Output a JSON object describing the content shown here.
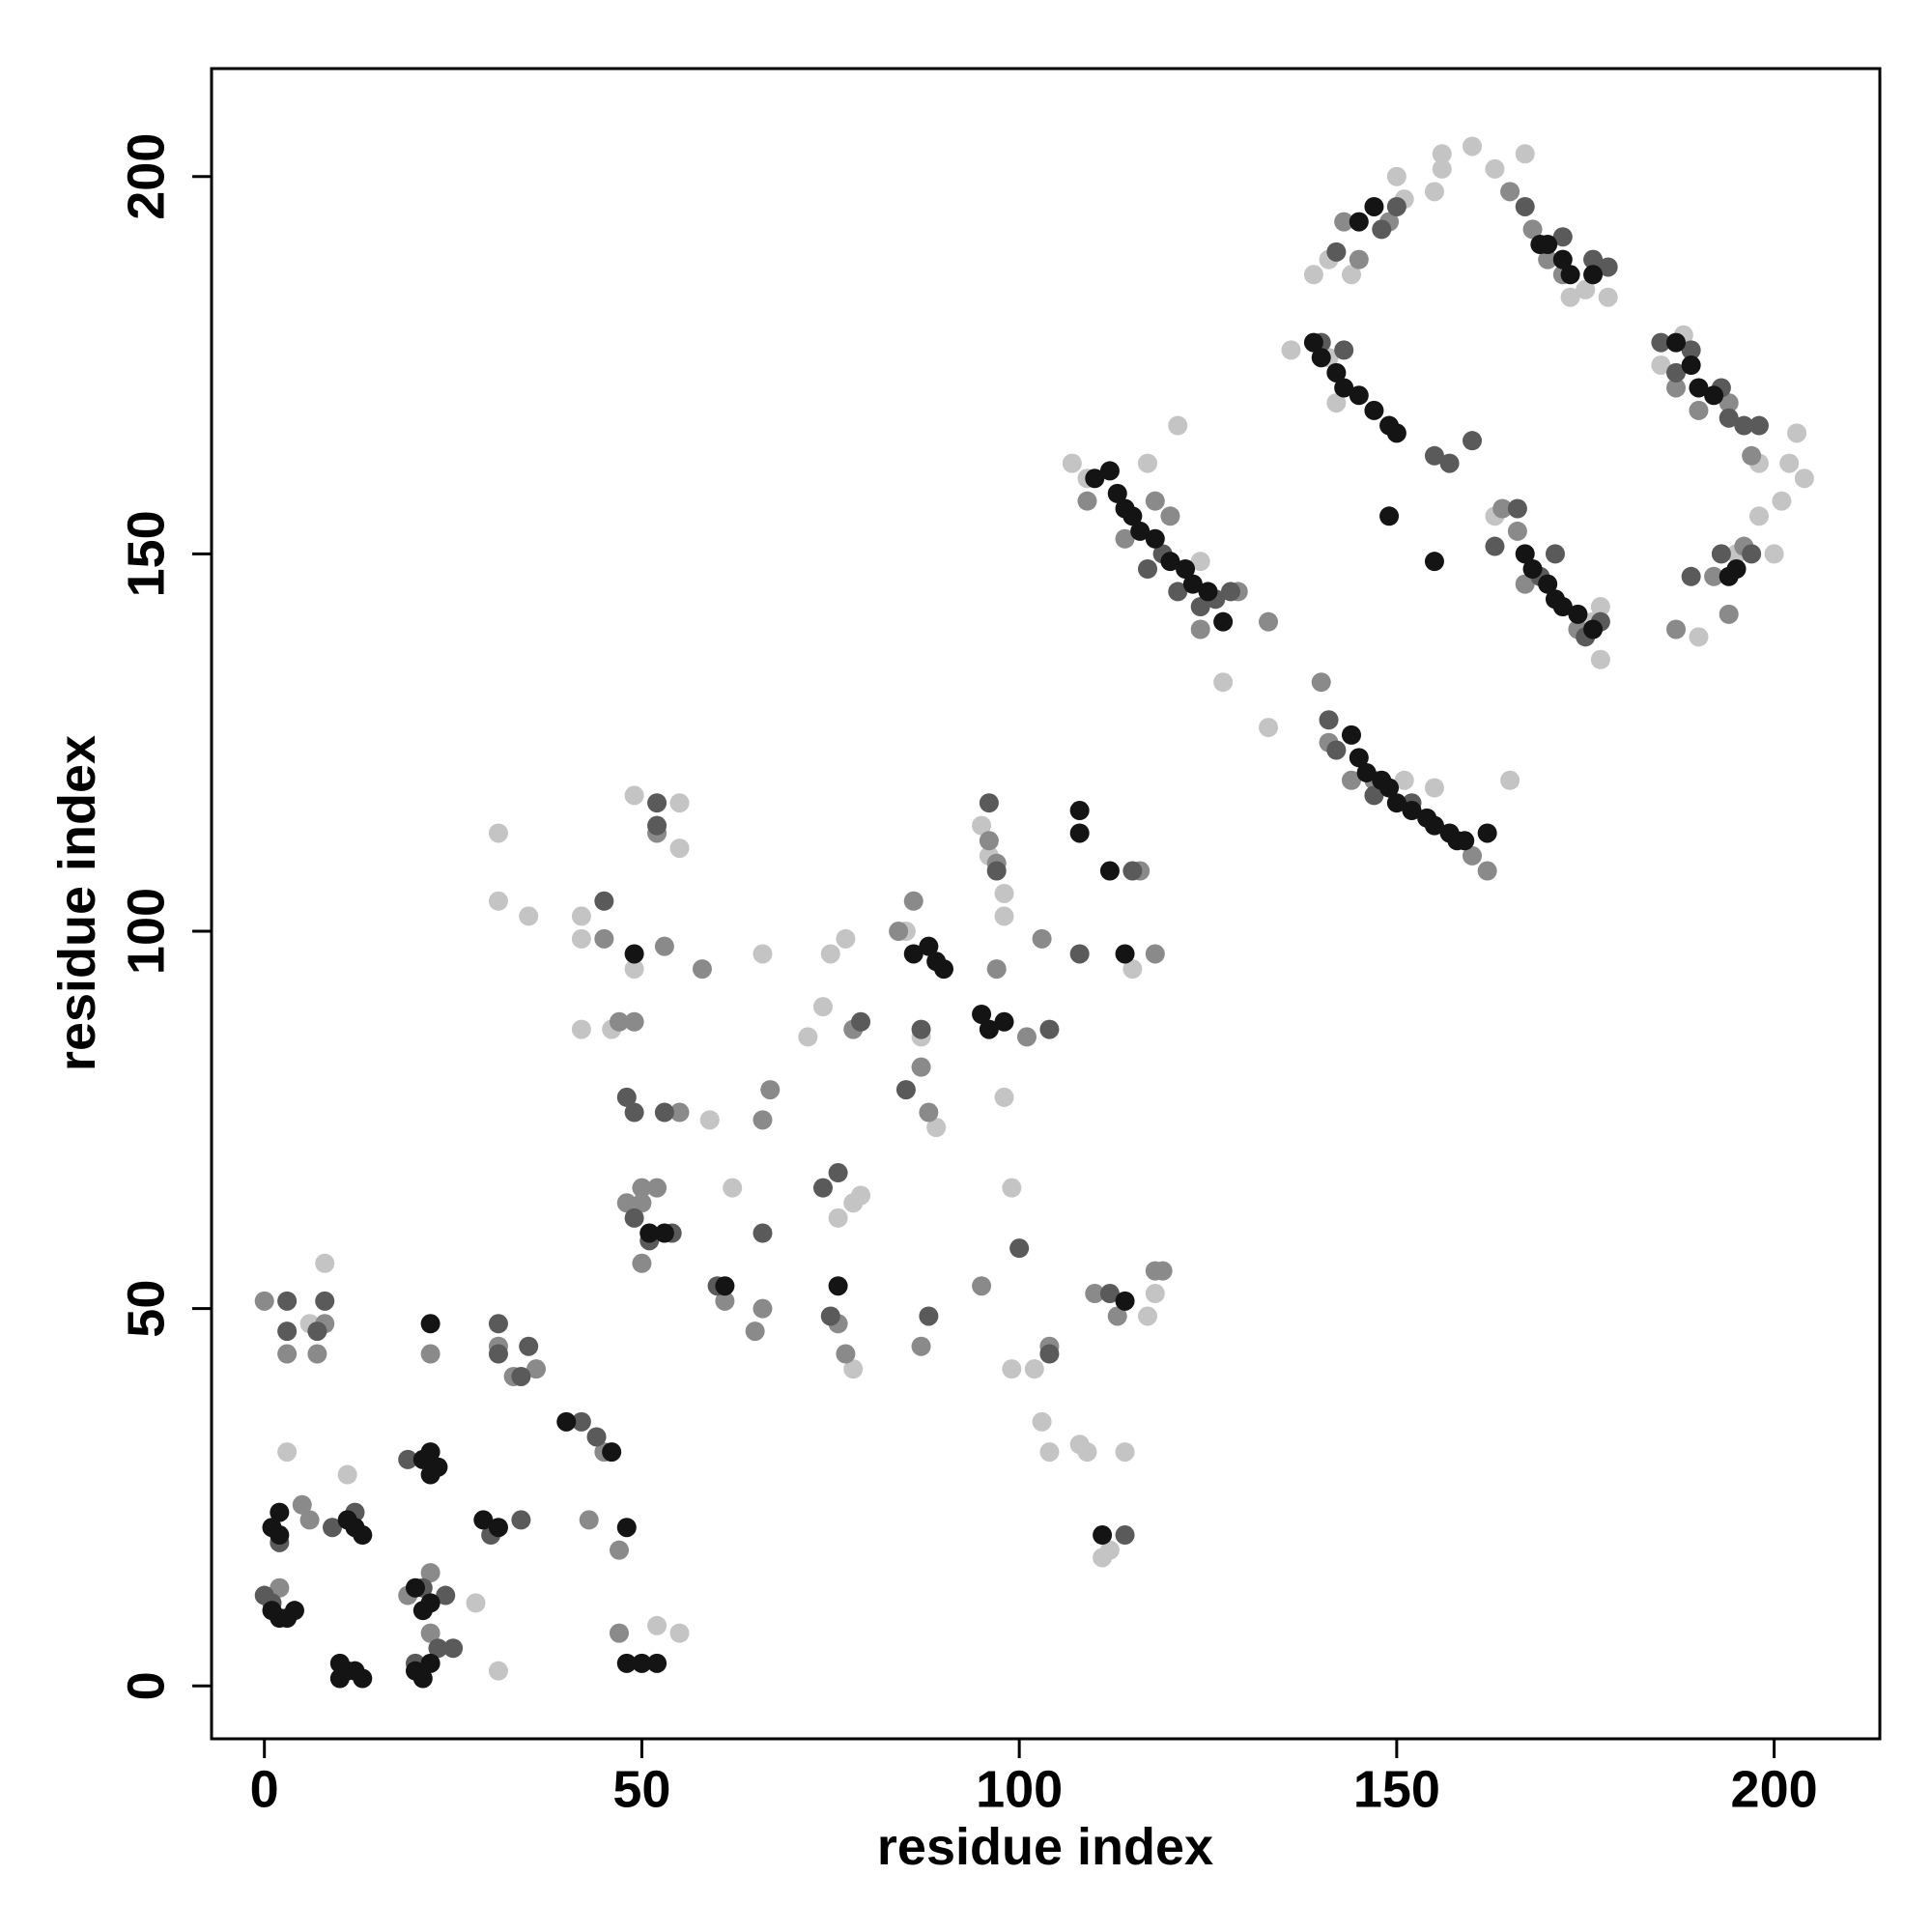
{
  "chart_data": {
    "type": "scatter",
    "x_label": "residue index",
    "y_label": "residue index",
    "xlim": [
      -7,
      214
    ],
    "ylim": [
      -7,
      214.3
    ],
    "xticks": [
      0,
      50,
      100,
      150,
      200
    ],
    "yticks": [
      0,
      50,
      100,
      150,
      200
    ],
    "series": [
      {
        "color": "#c4c4c4",
        "x": [
          3,
          8,
          6,
          11,
          28,
          31,
          31,
          31,
          35,
          42,
          42,
          42,
          46,
          49,
          49,
          55,
          55,
          55,
          52,
          59,
          62,
          66,
          72,
          74,
          77,
          75,
          76,
          78,
          78,
          79,
          85,
          87,
          89,
          95,
          96,
          98,
          98,
          98,
          99,
          99,
          102,
          103,
          104,
          108,
          109,
          114,
          111,
          112,
          115,
          117,
          118,
          107,
          109,
          117,
          121,
          124,
          127,
          133,
          136,
          139,
          141,
          144,
          150,
          151,
          155,
          156,
          156,
          160,
          163,
          167,
          173,
          175,
          178,
          177,
          177,
          176,
          165,
          163,
          185,
          188,
          190,
          195,
          198,
          198,
          200,
          201,
          202,
          203,
          204,
          141,
          142,
          155,
          151
        ],
        "y": [
          31,
          56,
          48,
          28,
          11,
          2,
          113,
          104,
          102,
          102,
          99,
          87,
          87,
          118,
          95,
          117,
          111,
          7,
          8,
          75,
          66,
          97,
          86,
          90,
          99,
          97,
          62,
          64,
          42,
          65,
          100,
          86,
          74,
          114,
          110,
          105,
          102,
          78,
          66,
          42,
          42,
          35,
          31,
          32,
          31,
          31,
          17,
          18,
          95,
          49,
          52,
          162,
          160,
          162,
          167,
          149,
          133,
          127,
          177,
          187,
          189,
          187,
          200,
          197,
          198,
          203,
          201,
          204,
          201,
          203,
          184,
          185,
          184,
          136,
          143,
          141,
          120,
          155,
          175,
          179,
          139,
          150,
          155,
          162,
          150,
          157,
          162,
          166,
          160,
          176,
          170,
          119,
          120
        ]
      },
      {
        "color": "#8a8a8a",
        "x": [
          2,
          0,
          3,
          5,
          6,
          7,
          8,
          19,
          22,
          22,
          22,
          31,
          33,
          36,
          43,
          45,
          47,
          45,
          47,
          47,
          48,
          49,
          50,
          50,
          50,
          52,
          53,
          58,
          52,
          55,
          61,
          65,
          66,
          66,
          67,
          76,
          77,
          78,
          84,
          86,
          87,
          88,
          87,
          95,
          97,
          96,
          97,
          101,
          103,
          104,
          110,
          113,
          116,
          118,
          118,
          119,
          109,
          114,
          118,
          120,
          124,
          129,
          133,
          140,
          141,
          144,
          147,
          160,
          162,
          164,
          166,
          167,
          172,
          174,
          145,
          143,
          149,
          165,
          168,
          170,
          172,
          187,
          190,
          194,
          196,
          197,
          192,
          187,
          194
        ],
        "y": [
          13,
          51,
          44,
          24,
          22,
          44,
          48,
          12,
          15,
          7,
          44,
          45,
          41,
          42,
          22,
          99,
          88,
          31,
          18,
          7,
          64,
          88,
          66,
          64,
          56,
          113,
          98,
          95,
          66,
          76,
          51,
          47,
          50,
          75,
          79,
          48,
          44,
          87,
          100,
          104,
          82,
          76,
          45,
          53,
          95,
          112,
          109,
          86,
          99,
          45,
          52,
          49,
          108,
          97,
          55,
          55,
          157,
          152,
          157,
          155,
          140,
          145,
          141,
          133,
          125,
          120,
          120,
          110,
          108,
          156,
          153,
          146,
          143,
          140,
          189,
          194,
          194,
          198,
          193,
          189,
          187,
          172,
          169,
          170,
          151,
          163,
          147,
          140,
          142
        ]
      },
      {
        "color": "#5a5a5a",
        "x": [
          0,
          1,
          2,
          3,
          3,
          7,
          8,
          9,
          12,
          19,
          20,
          21,
          23,
          25,
          24,
          31,
          31,
          30,
          34,
          35,
          34,
          42,
          44,
          45,
          48,
          49,
          51,
          54,
          49,
          53,
          52,
          52,
          60,
          66,
          74,
          76,
          75,
          79,
          85,
          87,
          88,
          96,
          97,
          100,
          104,
          104,
          112,
          114,
          115,
          108,
          117,
          119,
          121,
          124,
          126,
          128,
          141,
          142,
          147,
          152,
          155,
          157,
          160,
          163,
          166,
          169,
          171,
          175,
          177,
          140,
          143,
          142,
          148,
          150,
          167,
          172,
          176,
          178,
          185,
          187,
          189,
          193,
          194,
          196,
          198,
          193,
          189,
          197
        ],
        "y": [
          12,
          11,
          19,
          47,
          51,
          47,
          51,
          21,
          23,
          30,
          3,
          13,
          5,
          5,
          12,
          48,
          44,
          20,
          22,
          45,
          41,
          35,
          33,
          104,
          78,
          76,
          59,
          60,
          62,
          76,
          114,
          117,
          53,
          60,
          66,
          68,
          49,
          88,
          79,
          87,
          49,
          117,
          108,
          58,
          44,
          87,
          52,
          20,
          108,
          97,
          148,
          150,
          145,
          143,
          144,
          145,
          128,
          124,
          118,
          117,
          163,
          162,
          165,
          151,
          156,
          147,
          150,
          139,
          141,
          178,
          177,
          190,
          193,
          196,
          196,
          192,
          189,
          188,
          178,
          174,
          177,
          172,
          168,
          167,
          167,
          150,
          147,
          150
        ]
      },
      {
        "color": "#141414",
        "x": [
          1,
          2,
          3,
          4,
          1,
          2,
          2,
          10,
          11,
          10,
          12,
          13,
          11,
          12,
          13,
          21,
          20,
          22,
          21,
          22,
          20,
          21,
          22,
          22,
          23,
          29,
          31,
          22,
          48,
          48,
          50,
          52,
          40,
          46,
          51,
          53,
          49,
          61,
          76,
          86,
          88,
          89,
          90,
          95,
          96,
          98,
          108,
          108,
          112,
          111,
          114,
          114,
          110,
          112,
          113,
          114,
          115,
          116,
          118,
          120,
          122,
          123,
          125,
          127,
          139,
          140,
          142,
          143,
          145,
          147,
          149,
          150,
          149,
          155,
          144,
          145,
          146,
          148,
          149,
          150,
          152,
          154,
          155,
          157,
          158,
          159,
          162,
          167,
          168,
          170,
          171,
          172,
          174,
          176,
          145,
          147,
          169,
          170,
          172,
          173,
          176,
          187,
          189,
          190,
          192,
          194,
          195
        ],
        "y": [
          10,
          9,
          9,
          10,
          21,
          23,
          20,
          3,
          2,
          1,
          2,
          1,
          22,
          21,
          20,
          1,
          2,
          3,
          10,
          11,
          13,
          30,
          28,
          31,
          29,
          22,
          21,
          48,
          21,
          3,
          3,
          3,
          35,
          31,
          60,
          60,
          97,
          53,
          53,
          97,
          98,
          96,
          95,
          89,
          87,
          88,
          116,
          113,
          108,
          20,
          51,
          97,
          160,
          161,
          158,
          156,
          155,
          153,
          152,
          149,
          148,
          146,
          145,
          141,
          178,
          176,
          174,
          172,
          171,
          169,
          167,
          166,
          155,
          149,
          126,
          123,
          121,
          120,
          119,
          117,
          116,
          115,
          114,
          113,
          112,
          112,
          113,
          150,
          148,
          146,
          144,
          143,
          142,
          140,
          194,
          196,
          191,
          191,
          189,
          187,
          187,
          178,
          175,
          172,
          171,
          147,
          148
        ]
      }
    ]
  }
}
